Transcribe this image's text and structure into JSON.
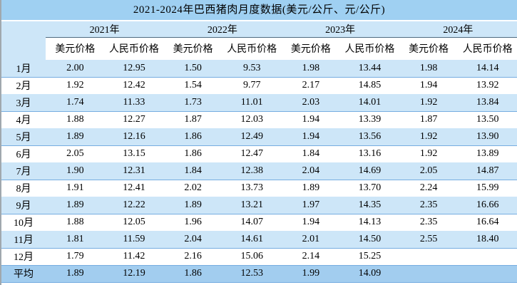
{
  "title": "2021-2024年巴西猪肉月度数据(美元/公斤、元/公斤)",
  "chart_data": {
    "type": "table",
    "title": "2021-2024年巴西猪肉月度数据(美元/公斤、元/公斤)",
    "units": [
      "美元/公斤",
      "元/公斤"
    ],
    "year_headers": [
      "2021年",
      "2022年",
      "2023年",
      "2024年"
    ],
    "sub_headers": [
      "美元价格",
      "人民币价格",
      "美元价格",
      "人民币价格",
      "美元价格",
      "人民币价格",
      "美元价格",
      "人民币价格"
    ],
    "rows": [
      {
        "label": "1月",
        "values": [
          "2.00",
          "12.95",
          "1.50",
          "9.53",
          "1.98",
          "13.44",
          "1.98",
          "14.14"
        ]
      },
      {
        "label": "2月",
        "values": [
          "1.92",
          "12.42",
          "1.54",
          "9.77",
          "2.17",
          "14.85",
          "1.94",
          "13.92"
        ]
      },
      {
        "label": "3月",
        "values": [
          "1.74",
          "11.33",
          "1.73",
          "11.01",
          "2.03",
          "14.01",
          "1.92",
          "13.84"
        ]
      },
      {
        "label": "4月",
        "values": [
          "1.88",
          "12.27",
          "1.87",
          "12.03",
          "1.94",
          "13.39",
          "1.87",
          "13.50"
        ]
      },
      {
        "label": "5月",
        "values": [
          "1.89",
          "12.16",
          "1.86",
          "12.49",
          "1.94",
          "13.56",
          "1.92",
          "13.90"
        ]
      },
      {
        "label": "6月",
        "values": [
          "2.05",
          "13.15",
          "1.86",
          "12.47",
          "1.84",
          "13.16",
          "1.92",
          "13.89"
        ]
      },
      {
        "label": "7月",
        "values": [
          "1.90",
          "12.31",
          "1.84",
          "12.38",
          "2.04",
          "14.69",
          "2.05",
          "14.87"
        ]
      },
      {
        "label": "8月",
        "values": [
          "1.91",
          "12.41",
          "2.02",
          "13.73",
          "1.89",
          "13.70",
          "2.24",
          "15.99"
        ]
      },
      {
        "label": "9月",
        "values": [
          "1.89",
          "12.22",
          "1.89",
          "13.21",
          "1.97",
          "14.35",
          "2.35",
          "16.66"
        ]
      },
      {
        "label": "10月",
        "values": [
          "1.88",
          "12.05",
          "1.96",
          "14.07",
          "1.94",
          "14.13",
          "2.35",
          "16.64"
        ]
      },
      {
        "label": "11月",
        "values": [
          "1.81",
          "11.59",
          "2.04",
          "14.61",
          "2.01",
          "14.50",
          "2.55",
          "18.40"
        ]
      },
      {
        "label": "12月",
        "values": [
          "1.79",
          "11.42",
          "2.16",
          "15.06",
          "2.14",
          "15.25",
          "",
          ""
        ]
      },
      {
        "label": "平均",
        "values": [
          "1.89",
          "12.19",
          "1.86",
          "12.53",
          "1.99",
          "14.09",
          "",
          ""
        ]
      }
    ]
  },
  "colors": {
    "title_bg": "#9fd0f2",
    "stripe_blue": "#cde6f8",
    "avg_row_bg": "#a2cdef",
    "row_line": "#76ade0",
    "header_line": "#4d6980",
    "left_border": "#a0a8ae",
    "text_color": "#000000"
  }
}
